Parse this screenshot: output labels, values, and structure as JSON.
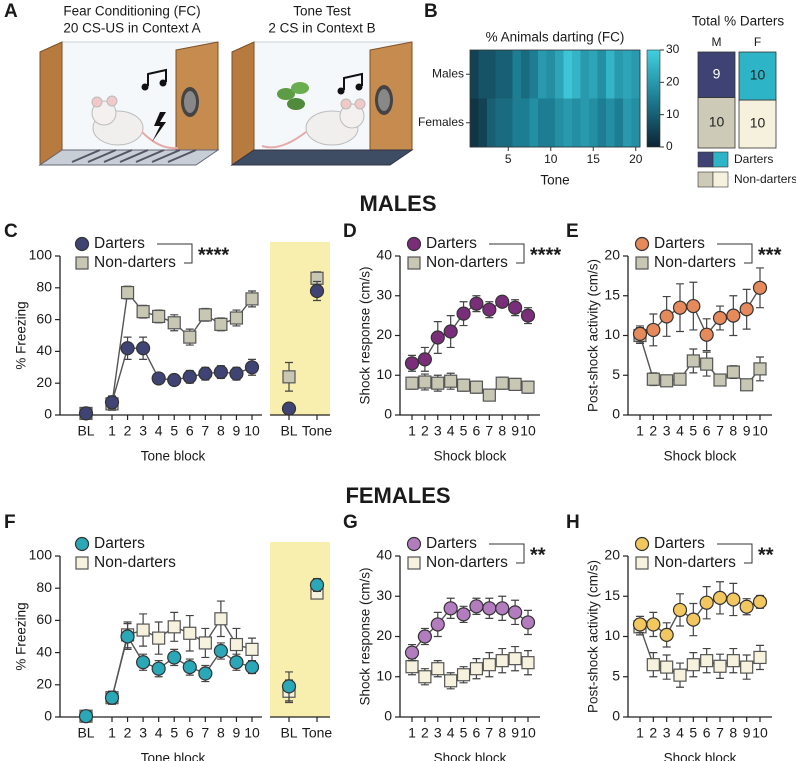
{
  "panel_labels": [
    "A",
    "B",
    "C",
    "D",
    "E",
    "F",
    "G",
    "H"
  ],
  "illustrations": [
    {
      "title": "Fear Conditioning (FC)",
      "subtitle": "20 CS-US in Context A"
    },
    {
      "title": "Tone Test",
      "subtitle": "2 CS in Context B"
    }
  ],
  "section_titles": [
    "MALES",
    "FEMALES"
  ],
  "chart_data": [
    {
      "type": "heatmap",
      "title": "% Animals darting (FC)",
      "xlabel": "Tone",
      "rows": [
        "Males",
        "Females"
      ],
      "values": [
        [
          5,
          8,
          8,
          10,
          10,
          15,
          12,
          15,
          20,
          18,
          22,
          28,
          25,
          20,
          22,
          18,
          25,
          20,
          22,
          20
        ],
        [
          3,
          5,
          10,
          12,
          12,
          15,
          15,
          18,
          15,
          15,
          18,
          20,
          18,
          20,
          18,
          15,
          18,
          15,
          20,
          18
        ]
      ],
      "xticks": [
        5,
        10,
        15,
        20
      ],
      "clim": [
        0,
        30
      ],
      "colorbar_ticks": [
        0,
        10,
        20,
        30
      ],
      "colormap": [
        "#0d2433",
        "#1d7d93",
        "#40d0e0"
      ]
    },
    {
      "type": "stacked_bar",
      "title": "Total % Darters",
      "categories": [
        "M",
        "F"
      ],
      "series": [
        {
          "name": "Darters",
          "colors": [
            "#3e4374",
            "#2db4c6"
          ],
          "values": [
            9,
            10
          ]
        },
        {
          "name": "Non-darters",
          "colors": [
            "#cdcbb7",
            "#f6f1dc"
          ],
          "values": [
            10,
            10
          ]
        }
      ]
    },
    {
      "type": "line",
      "ylabel": "% Freezing",
      "xlabel": "Tone block",
      "significance": "****",
      "categories": [
        "BL",
        "1",
        "2",
        "3",
        "4",
        "5",
        "6",
        "7",
        "8",
        "9",
        "10"
      ],
      "test_categories": [
        "BL",
        "Tone"
      ],
      "ylim": [
        0,
        100
      ],
      "yticks": [
        0,
        20,
        40,
        60,
        80,
        100
      ],
      "series": [
        {
          "name": "Darters",
          "color": "#404474",
          "marker": "circle",
          "values": [
            1,
            8,
            42,
            42,
            23,
            22,
            24,
            26,
            27,
            26,
            30
          ],
          "errors": [
            1,
            4,
            7,
            7,
            3,
            3,
            4,
            4,
            4,
            4,
            5
          ],
          "test_values": [
            4,
            78
          ],
          "test_errors": [
            2,
            6
          ]
        },
        {
          "name": "Non-darters",
          "color": "#c8c7b3",
          "marker": "square",
          "values": [
            1,
            7,
            77,
            65,
            62,
            58,
            49,
            63,
            57,
            61,
            73
          ],
          "errors": [
            1,
            4,
            4,
            4,
            4,
            5,
            5,
            4,
            4,
            5,
            5
          ],
          "test_values": [
            24,
            86
          ],
          "test_errors": [
            9,
            4
          ]
        }
      ]
    },
    {
      "type": "line",
      "ylabel": "Shock response (cm/s)",
      "xlabel": "Shock block",
      "significance": "****",
      "categories": [
        "1",
        "2",
        "3",
        "4",
        "5",
        "6",
        "7",
        "8",
        "9",
        "10"
      ],
      "ylim": [
        0,
        40
      ],
      "yticks": [
        0,
        10,
        20,
        30,
        40
      ],
      "series": [
        {
          "name": "Darters",
          "color": "#7a2e79",
          "marker": "circle",
          "values": [
            13,
            14,
            19.5,
            21,
            25.5,
            28,
            26.5,
            28.5,
            27,
            25
          ],
          "errors": [
            2,
            3,
            4,
            4,
            3,
            2,
            2,
            1,
            2,
            2
          ]
        },
        {
          "name": "Non-darters",
          "color": "#c8c7b3",
          "marker": "square",
          "values": [
            8,
            8.3,
            8,
            8.5,
            7.5,
            7,
            5,
            8,
            7.7,
            7
          ],
          "errors": [
            1.5,
            2,
            2,
            2,
            1.5,
            1.5,
            1,
            1.5,
            1.5,
            1.5
          ]
        }
      ]
    },
    {
      "type": "line",
      "ylabel": "Post-shock activity (cm/s)",
      "xlabel": "Shock block",
      "significance": "***",
      "categories": [
        "1",
        "2",
        "3",
        "4",
        "5",
        "6",
        "7",
        "8",
        "9",
        "10"
      ],
      "ylim": [
        0,
        20
      ],
      "yticks": [
        0,
        5,
        10,
        15,
        20
      ],
      "series": [
        {
          "name": "Darters",
          "color": "#e6895b",
          "marker": "circle",
          "values": [
            10.2,
            10.7,
            12.4,
            13.5,
            13.7,
            10.1,
            12.2,
            12.5,
            13.3,
            16
          ],
          "errors": [
            1,
            2,
            2.5,
            3,
            3,
            2,
            1.5,
            2.5,
            2.5,
            2.5
          ]
        },
        {
          "name": "Non-darters",
          "color": "#c8c7b3",
          "marker": "square",
          "values": [
            10,
            4.5,
            4.3,
            4.5,
            6.8,
            6.4,
            4.4,
            5.4,
            3.8,
            5.8
          ],
          "errors": [
            1,
            0.8,
            0.6,
            0.7,
            1.5,
            1.5,
            0.5,
            0.8,
            0.6,
            1.5
          ]
        }
      ]
    },
    {
      "type": "line",
      "ylabel": "% Freezing",
      "xlabel": "Tone block",
      "categories": [
        "BL",
        "1",
        "2",
        "3",
        "4",
        "5",
        "6",
        "7",
        "8",
        "9",
        "10"
      ],
      "test_categories": [
        "BL",
        "Tone"
      ],
      "ylim": [
        0,
        100
      ],
      "yticks": [
        0,
        20,
        40,
        60,
        80,
        100
      ],
      "series": [
        {
          "name": "Darters",
          "color": "#2aa8b8",
          "marker": "circle",
          "values": [
            0.5,
            12,
            50,
            34,
            30,
            37,
            31,
            27,
            41,
            34,
            31
          ],
          "errors": [
            0.5,
            4,
            8,
            5,
            5,
            5,
            5,
            5,
            5,
            5,
            4
          ],
          "test_values": [
            19,
            82
          ],
          "test_errors": [
            9,
            4
          ]
        },
        {
          "name": "Non-darters",
          "color": "#f6f2dd",
          "marker": "square",
          "values": [
            0.5,
            12,
            51,
            54,
            49,
            56,
            52,
            46,
            61,
            45,
            42
          ],
          "errors": [
            0.5,
            4,
            8,
            10,
            10,
            9,
            11,
            9,
            11,
            10,
            7
          ],
          "test_values": [
            16,
            77
          ],
          "test_errors": [
            7,
            3
          ]
        }
      ]
    },
    {
      "type": "line",
      "ylabel": "Shock response (cm/s)",
      "xlabel": "Shock block",
      "significance": "**",
      "categories": [
        "1",
        "2",
        "3",
        "4",
        "5",
        "6",
        "7",
        "8",
        "9",
        "10"
      ],
      "ylim": [
        0,
        40
      ],
      "yticks": [
        0,
        10,
        20,
        30,
        40
      ],
      "series": [
        {
          "name": "Darters",
          "color": "#b27cbf",
          "marker": "circle",
          "values": [
            16,
            20,
            23,
            27,
            25.5,
            27.5,
            27,
            27,
            26,
            23.5
          ],
          "errors": [
            2,
            2,
            3,
            2.5,
            2,
            2,
            2.5,
            3,
            3,
            3
          ]
        },
        {
          "name": "Non-darters",
          "color": "#f6f2dd",
          "marker": "square",
          "values": [
            12.5,
            10,
            12,
            9,
            10.5,
            12,
            13,
            14,
            14.5,
            13.5
          ],
          "errors": [
            2,
            2,
            2,
            2,
            2,
            2.5,
            3,
            3,
            3,
            3
          ]
        }
      ]
    },
    {
      "type": "line",
      "ylabel": "Post-shock activity (cm/s)",
      "xlabel": "Shock block",
      "significance": "**",
      "categories": [
        "1",
        "2",
        "3",
        "4",
        "5",
        "6",
        "7",
        "8",
        "9",
        "10"
      ],
      "ylim": [
        0,
        20
      ],
      "yticks": [
        0,
        5,
        10,
        15,
        20
      ],
      "series": [
        {
          "name": "Darters",
          "color": "#f2c75f",
          "marker": "circle",
          "values": [
            11.5,
            11.5,
            10.2,
            13.3,
            12.1,
            14.2,
            14.8,
            14.6,
            13.7,
            14.3
          ],
          "errors": [
            1,
            1.5,
            1.5,
            2,
            2,
            2,
            2,
            2,
            1,
            0.8
          ]
        },
        {
          "name": "Non-darters",
          "color": "#f6f2dd",
          "marker": "square",
          "values": [
            11.2,
            6.5,
            6.2,
            5.2,
            6.5,
            7,
            6.3,
            7,
            6.2,
            7.4
          ],
          "errors": [
            1,
            1.5,
            1.5,
            1.5,
            1.5,
            1.5,
            1.5,
            1.5,
            1.5,
            1.5
          ]
        }
      ]
    }
  ]
}
